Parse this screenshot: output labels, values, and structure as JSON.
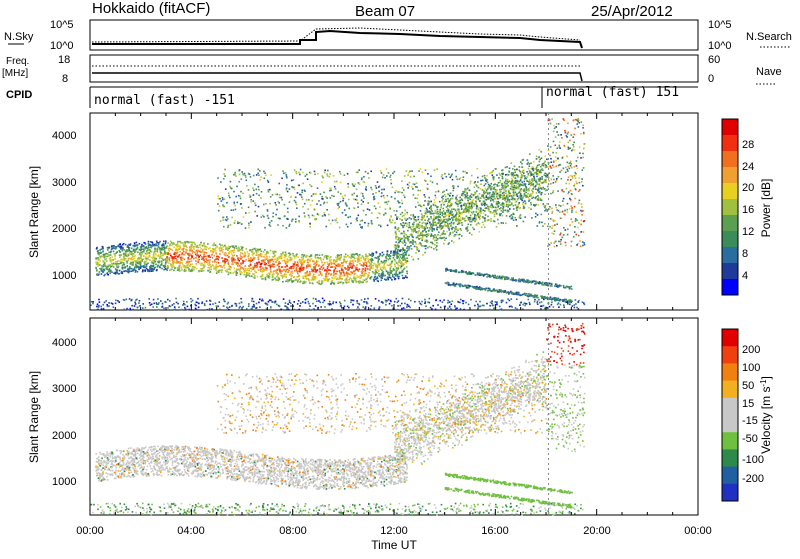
{
  "header": {
    "title": "Hokkaido (fitACF)",
    "beam": "Beam 07",
    "date": "25/Apr/2012"
  },
  "top_panels": {
    "nsky_label": "N.Sky",
    "nsky_ticks": [
      "10^5",
      "10^0"
    ],
    "nsearch_label": "N.Search",
    "nsearch_ticks": [
      "10^5",
      "10^0"
    ],
    "freq_label": "Freq.",
    "freq_unit": "[MHz]",
    "freq_ticks": [
      "18",
      "8"
    ],
    "nave_label": "Nave",
    "nave_ticks": [
      "60",
      "0"
    ],
    "cpid_label": "CPID",
    "cpid_segments": [
      "normal (fast) -151",
      "normal (fast) 151"
    ]
  },
  "power_panel": {
    "ylabel": "Slant Range [km]",
    "yticks": [
      "4000",
      "3000",
      "2000",
      "1000"
    ],
    "colorbar_label": "Power [dB]",
    "colorbar_ticks": [
      "28",
      "24",
      "20",
      "16",
      "12",
      "8",
      "4"
    ],
    "colors": [
      "#0000ff",
      "#1f3a9a",
      "#2a6ea0",
      "#3a8c5a",
      "#5aa050",
      "#a0c040",
      "#e8d020",
      "#f0a030",
      "#f07020",
      "#f03010",
      "#e00000"
    ]
  },
  "velocity_panel": {
    "ylabel": "Slant Range [km]",
    "yticks": [
      "4000",
      "3000",
      "2000",
      "1000"
    ],
    "colorbar_label": "Velocity [m s",
    "colorbar_sup": "-1",
    "colorbar_close": "]",
    "colorbar_ticks": [
      "200",
      "100",
      "50",
      "15",
      "-15",
      "-50",
      "-100",
      "-200"
    ],
    "colors": [
      "#2030c0",
      "#2060a0",
      "#2e8a4a",
      "#70c040",
      "#c8c8c8",
      "#c8c8c8",
      "#f0b020",
      "#f08010",
      "#f04010",
      "#e00000"
    ]
  },
  "xaxis": {
    "label": "Time UT",
    "ticks": [
      "00:00",
      "04:00",
      "08:00",
      "12:00",
      "16:00",
      "20:00",
      "00:00"
    ]
  },
  "chart_data": {
    "type": "heatmap",
    "title": "Hokkaido (fitACF)",
    "subtitle": "Beam 07",
    "date": "25/Apr/2012",
    "xlabel": "Time UT",
    "ylabel": "Slant Range [km]",
    "xlim_hours": [
      0,
      24
    ],
    "ylim_km": [
      200,
      4500
    ],
    "data_end_hour": 19.5,
    "cpid_switch_hour": 18.1,
    "panels": [
      {
        "name": "Power [dB]",
        "colorscale_range": [
          0,
          30
        ]
      },
      {
        "name": "Velocity [m s-1]",
        "colorscale_range": [
          -250,
          250
        ]
      }
    ],
    "features": [
      {
        "desc": "main band",
        "t0": 0.2,
        "t1": 12.5,
        "r0": 900,
        "r1": 1600
      },
      {
        "desc": "rising echoes",
        "t0": 12.0,
        "t1": 18.0,
        "r0": 1400,
        "r1": 3000
      },
      {
        "desc": "descending arcs",
        "t0": 14.0,
        "t1": 19.0,
        "r0": 600,
        "r1": 1100
      }
    ]
  }
}
